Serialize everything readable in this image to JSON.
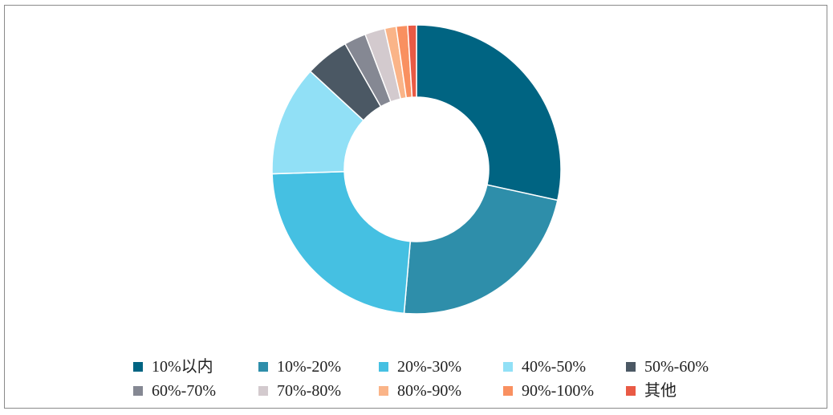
{
  "chart_data": {
    "type": "pie",
    "donut": true,
    "title": "",
    "categories": [
      "10%以内",
      "10%-20%",
      "20%-30%",
      "40%-50%",
      "50%-60%",
      "60%-70%",
      "70%-80%",
      "80%-90%",
      "90%-100%",
      "其他"
    ],
    "values": [
      29.0,
      23.4,
      23.6,
      12.6,
      5.0,
      2.5,
      2.3,
      1.3,
      1.3,
      1.0
    ],
    "unit": "%",
    "colors": [
      "#006482",
      "#2E8EAA",
      "#45C0E2",
      "#91E0F6",
      "#4B5864",
      "#858893",
      "#D3CACE",
      "#FAB488",
      "#F99060",
      "#E95A45"
    ],
    "legend_position": "bottom",
    "legend_layout": "2 rows x 5 columns",
    "start_angle_deg": 0,
    "direction": "clockwise"
  }
}
